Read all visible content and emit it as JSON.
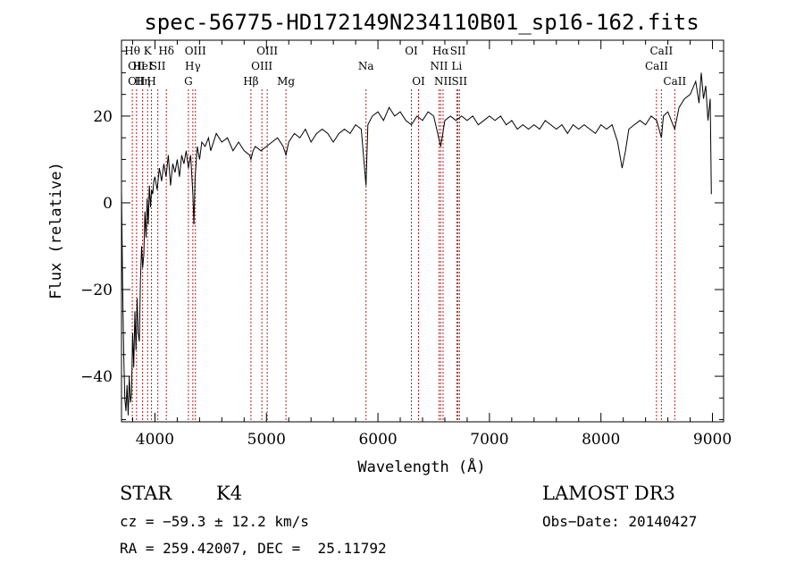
{
  "chart_data": {
    "type": "line",
    "title": "spec-56775-HD172149N234110B01_sp16-162.fits",
    "xlabel": "Wavelength (Å)",
    "ylabel": "Flux (relative)",
    "xlim": [
      3700,
      9100
    ],
    "ylim": [
      -50.5,
      37.5
    ],
    "x_ticks": [
      4000,
      5000,
      6000,
      7000,
      8000,
      9000
    ],
    "y_ticks": [
      -40,
      -20,
      0,
      20
    ],
    "series": [
      {
        "values": [
          [
            3700,
            3
          ],
          [
            3710,
            -18
          ],
          [
            3720,
            -35
          ],
          [
            3730,
            -45
          ],
          [
            3740,
            -48
          ],
          [
            3750,
            -42
          ],
          [
            3760,
            -49
          ],
          [
            3770,
            -40
          ],
          [
            3780,
            -46
          ],
          [
            3790,
            -44
          ],
          [
            3800,
            -30
          ],
          [
            3810,
            -38
          ],
          [
            3820,
            -25
          ],
          [
            3830,
            -34
          ],
          [
            3840,
            -22
          ],
          [
            3850,
            -30
          ],
          [
            3860,
            -32
          ],
          [
            3870,
            -18
          ],
          [
            3880,
            -10
          ],
          [
            3890,
            -15
          ],
          [
            3900,
            -12
          ],
          [
            3910,
            -2
          ],
          [
            3920,
            -8
          ],
          [
            3930,
            1
          ],
          [
            3940,
            -5
          ],
          [
            3950,
            4
          ],
          [
            3960,
            -1
          ],
          [
            3970,
            3
          ],
          [
            3980,
            2
          ],
          [
            3990,
            5
          ],
          [
            4000,
            6
          ],
          [
            4020,
            3
          ],
          [
            4040,
            8
          ],
          [
            4060,
            5
          ],
          [
            4080,
            9
          ],
          [
            4100,
            6
          ],
          [
            4120,
            11
          ],
          [
            4140,
            4
          ],
          [
            4160,
            9
          ],
          [
            4180,
            7
          ],
          [
            4200,
            10
          ],
          [
            4220,
            6
          ],
          [
            4240,
            11
          ],
          [
            4260,
            9
          ],
          [
            4280,
            12
          ],
          [
            4300,
            8
          ],
          [
            4320,
            11
          ],
          [
            4340,
            2
          ],
          [
            4350,
            -5
          ],
          [
            4360,
            6
          ],
          [
            4380,
            13
          ],
          [
            4400,
            10
          ],
          [
            4420,
            14
          ],
          [
            4450,
            13
          ],
          [
            4480,
            15
          ],
          [
            4500,
            12
          ],
          [
            4550,
            16
          ],
          [
            4600,
            14
          ],
          [
            4650,
            15
          ],
          [
            4700,
            12
          ],
          [
            4750,
            14
          ],
          [
            4800,
            12
          ],
          [
            4850,
            11
          ],
          [
            4861,
            10
          ],
          [
            4880,
            12
          ],
          [
            4900,
            13
          ],
          [
            4950,
            12
          ],
          [
            5000,
            13
          ],
          [
            5050,
            14
          ],
          [
            5100,
            15
          ],
          [
            5150,
            13
          ],
          [
            5175,
            11
          ],
          [
            5200,
            14
          ],
          [
            5250,
            16
          ],
          [
            5300,
            15
          ],
          [
            5350,
            17
          ],
          [
            5400,
            14
          ],
          [
            5450,
            16
          ],
          [
            5500,
            17
          ],
          [
            5550,
            16
          ],
          [
            5600,
            14
          ],
          [
            5650,
            16
          ],
          [
            5700,
            17
          ],
          [
            5750,
            16
          ],
          [
            5800,
            18
          ],
          [
            5850,
            17
          ],
          [
            5893,
            4
          ],
          [
            5910,
            18
          ],
          [
            5950,
            20
          ],
          [
            6000,
            21
          ],
          [
            6050,
            19
          ],
          [
            6100,
            22
          ],
          [
            6150,
            20
          ],
          [
            6200,
            21
          ],
          [
            6250,
            19
          ],
          [
            6300,
            18
          ],
          [
            6350,
            20
          ],
          [
            6400,
            19
          ],
          [
            6450,
            21
          ],
          [
            6500,
            20
          ],
          [
            6563,
            13
          ],
          [
            6600,
            19
          ],
          [
            6650,
            20
          ],
          [
            6700,
            19
          ],
          [
            6750,
            20
          ],
          [
            6800,
            19
          ],
          [
            6850,
            20
          ],
          [
            6900,
            18
          ],
          [
            6950,
            19
          ],
          [
            7000,
            20
          ],
          [
            7050,
            19
          ],
          [
            7100,
            20
          ],
          [
            7150,
            18
          ],
          [
            7200,
            19
          ],
          [
            7250,
            17
          ],
          [
            7300,
            18
          ],
          [
            7350,
            17
          ],
          [
            7400,
            18
          ],
          [
            7450,
            17
          ],
          [
            7500,
            19
          ],
          [
            7550,
            18
          ],
          [
            7600,
            17
          ],
          [
            7650,
            18
          ],
          [
            7700,
            16
          ],
          [
            7750,
            18
          ],
          [
            7800,
            17
          ],
          [
            7850,
            18
          ],
          [
            7900,
            17
          ],
          [
            7950,
            16
          ],
          [
            8000,
            18
          ],
          [
            8050,
            17
          ],
          [
            8100,
            18
          ],
          [
            8150,
            14
          ],
          [
            8190,
            8
          ],
          [
            8220,
            12
          ],
          [
            8250,
            17
          ],
          [
            8300,
            18
          ],
          [
            8350,
            19
          ],
          [
            8400,
            18
          ],
          [
            8450,
            20
          ],
          [
            8500,
            19
          ],
          [
            8542,
            15
          ],
          [
            8560,
            20
          ],
          [
            8600,
            21
          ],
          [
            8662,
            17
          ],
          [
            8700,
            22
          ],
          [
            8750,
            24
          ],
          [
            8800,
            25
          ],
          [
            8850,
            28
          ],
          [
            8880,
            23
          ],
          [
            8900,
            30
          ],
          [
            8920,
            24
          ],
          [
            8940,
            27
          ],
          [
            8960,
            19
          ],
          [
            8980,
            24
          ],
          [
            8990,
            2
          ]
        ]
      }
    ],
    "annotations": [
      {
        "wavelength": 3797,
        "row": 1,
        "label": "Hθ"
      },
      {
        "wavelength": 3835,
        "row": 2,
        "label": "OII"
      },
      {
        "wavelength": 3835,
        "row": 3,
        "label": "OII"
      },
      {
        "wavelength": 3889,
        "row": 2,
        "label": "HeI"
      },
      {
        "wavelength": 3889,
        "row": 3,
        "label": "Hη"
      },
      {
        "wavelength": 3934,
        "row": 1,
        "label": "K"
      },
      {
        "wavelength": 3969,
        "row": 3,
        "label": "H"
      },
      {
        "wavelength": 4026,
        "row": 2,
        "label": "SII"
      },
      {
        "wavelength": 4102,
        "row": 1,
        "label": "Hδ"
      },
      {
        "wavelength": 4300,
        "row": 3,
        "label": "G"
      },
      {
        "wavelength": 4340,
        "row": 2,
        "label": "Hγ"
      },
      {
        "wavelength": 4363,
        "row": 1,
        "label": "OIII"
      },
      {
        "wavelength": 4861,
        "row": 3,
        "label": "Hβ"
      },
      {
        "wavelength": 4959,
        "row": 2,
        "label": "OIII"
      },
      {
        "wavelength": 5007,
        "row": 1,
        "label": "OIII"
      },
      {
        "wavelength": 5175,
        "row": 3,
        "label": "Mg"
      },
      {
        "wavelength": 5893,
        "row": 2,
        "label": "Na"
      },
      {
        "wavelength": 6300,
        "row": 1,
        "label": "OI"
      },
      {
        "wavelength": 6364,
        "row": 3,
        "label": "OI"
      },
      {
        "wavelength": 6548,
        "row": 2,
        "label": "NII"
      },
      {
        "wavelength": 6563,
        "row": 1,
        "label": "Hα"
      },
      {
        "wavelength": 6584,
        "row": 3,
        "label": "NII"
      },
      {
        "wavelength": 6707,
        "row": 2,
        "label": "Li"
      },
      {
        "wavelength": 6717,
        "row": 1,
        "label": "SII"
      },
      {
        "wavelength": 6731,
        "row": 3,
        "label": "SII"
      },
      {
        "wavelength": 8498,
        "row": 2,
        "label": "CaII"
      },
      {
        "wavelength": 8542,
        "row": 1,
        "label": "CaII"
      },
      {
        "wavelength": 8662,
        "row": 3,
        "label": "CaII"
      }
    ],
    "line_color": "#000000",
    "marker_color": "#b22222",
    "grid": false
  },
  "info": {
    "class": "STAR",
    "subclass": "K4",
    "survey": "LAMOST DR3",
    "cz": "cz = −59.3 ± 12.2 km/s",
    "obs_date": "Obs−Date: 20140427",
    "radec": "RA = 259.42007, DEC =  25.11792"
  }
}
